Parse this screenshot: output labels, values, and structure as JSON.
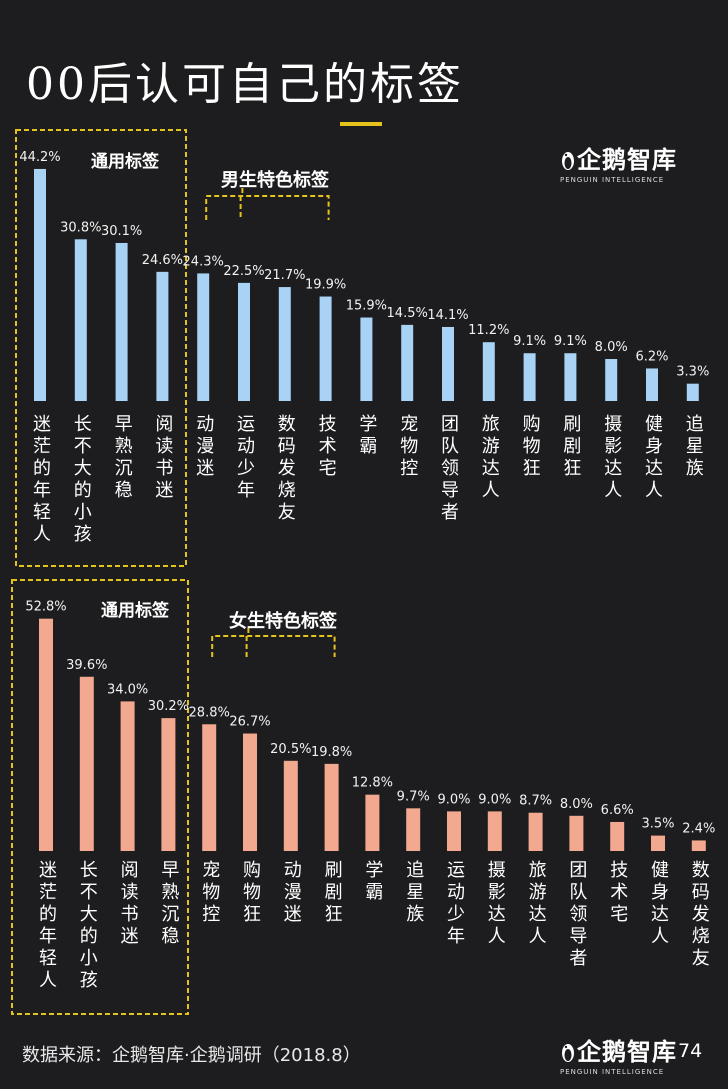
{
  "title": "00后认可自己的标签",
  "logo": {
    "name": "企鹅智库",
    "subtitle": "PENGUIN INTELLIGENCE"
  },
  "source": "数据来源：企鹅智库·企鹅调研（2018.8）",
  "page_number": "74",
  "colors": {
    "male_bar": "#a9d3f5",
    "female_bar": "#f2a98f",
    "highlight": "#e6c21d",
    "background": "#1d1d1f"
  },
  "chart_data": [
    {
      "type": "bar",
      "group_label": "通用标签",
      "special_label": "男生特色标签",
      "categories": [
        "迷茫的年轻人",
        "长不大的小孩",
        "早熟沉稳",
        "阅读书迷",
        "动漫迷",
        "运动少年",
        "数码发烧友",
        "技术宅",
        "学霸",
        "宠物控",
        "团队领导者",
        "旅游达人",
        "购物狂",
        "刷剧狂",
        "摄影达人",
        "健身达人",
        "追星族"
      ],
      "values": [
        44.2,
        30.8,
        30.1,
        24.6,
        24.3,
        22.5,
        21.7,
        19.9,
        15.9,
        14.5,
        14.1,
        11.2,
        9.1,
        9.1,
        8.0,
        6.2,
        3.3
      ],
      "value_labels": [
        "44.2%",
        "30.8%",
        "30.1%",
        "24.6%",
        "24.3%",
        "22.5%",
        "21.7%",
        "19.9%",
        "15.9%",
        "14.5%",
        "14.1%",
        "11.2%",
        "9.1%",
        "9.1%",
        "8.0%",
        "6.2%",
        "3.3%"
      ],
      "general_count": 4,
      "special_indices": [
        4,
        5,
        6,
        7
      ],
      "color": "#a9d3f5"
    },
    {
      "type": "bar",
      "group_label": "通用标签",
      "special_label": "女生特色标签",
      "categories": [
        "迷茫的年轻人",
        "长不大的小孩",
        "阅读书迷",
        "早熟沉稳",
        "宠物控",
        "购物狂",
        "动漫迷",
        "刷剧狂",
        "学霸",
        "追星族",
        "运动少年",
        "摄影达人",
        "旅游达人",
        "团队领导者",
        "技术宅",
        "健身达人",
        "数码发烧友"
      ],
      "values": [
        52.8,
        39.6,
        34.0,
        30.2,
        28.8,
        26.7,
        20.5,
        19.8,
        12.8,
        9.7,
        9.0,
        9.0,
        8.7,
        8.0,
        6.6,
        3.5,
        2.4
      ],
      "value_labels": [
        "52.8%",
        "39.6%",
        "34.0%",
        "30.2%",
        "28.8%",
        "26.7%",
        "20.5%",
        "19.8%",
        "12.8%",
        "9.7%",
        "9.0%",
        "9.0%",
        "8.7%",
        "8.0%",
        "6.6%",
        "3.5%",
        "2.4%"
      ],
      "general_count": 4,
      "special_indices": [
        4,
        5,
        6,
        7
      ],
      "color": "#f2a98f"
    }
  ]
}
